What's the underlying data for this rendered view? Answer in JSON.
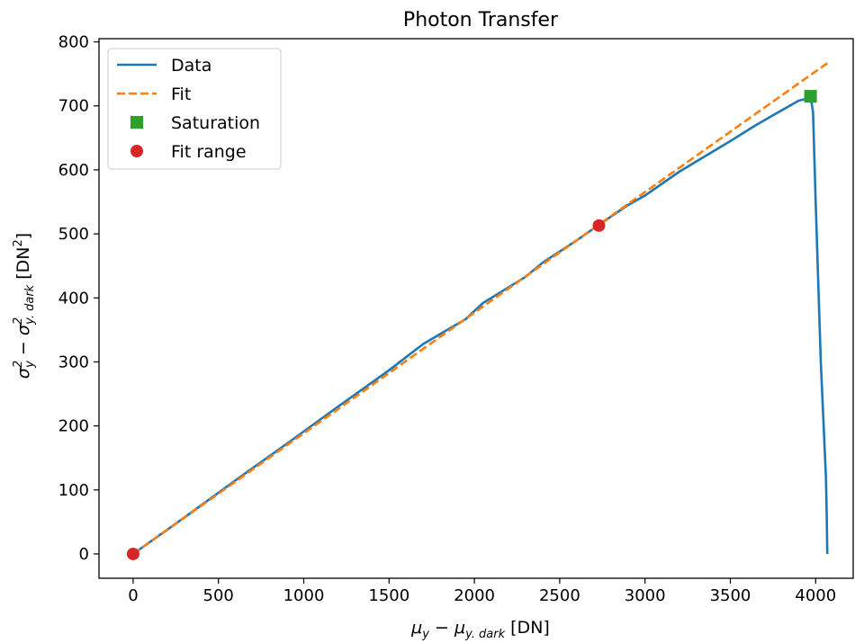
{
  "chart_data": {
    "type": "line",
    "title": "Photon Transfer",
    "xlabel": {
      "main": "μ",
      "sub1": "y",
      "mid": " − μ",
      "sub2": "y. dark",
      "unit": " [DN]"
    },
    "ylabel": {
      "main": "σ",
      "sup1": "2",
      "sub1": "y",
      "mid": " − σ",
      "sup2": "2",
      "sub2": "y. dark",
      "unit": " [DN",
      "unit_sup": "2",
      "unit_end": "]"
    },
    "xlim": [
      -200,
      4220
    ],
    "ylim": [
      -38,
      805
    ],
    "xticks": [
      0,
      500,
      1000,
      1500,
      2000,
      2500,
      3000,
      3500,
      4000
    ],
    "yticks": [
      0,
      100,
      200,
      300,
      400,
      500,
      600,
      700,
      800
    ],
    "grid": false,
    "legend": {
      "placement": "top-left",
      "entries": [
        {
          "label": "Data",
          "style": "solid-line",
          "color": "#1f77b4"
        },
        {
          "label": "Fit",
          "style": "dashed-line",
          "color": "#ff7f0e"
        },
        {
          "label": "Saturation",
          "style": "square-marker",
          "color": "#2ca02c"
        },
        {
          "label": "Fit range",
          "style": "circle-marker",
          "color": "#d62728"
        }
      ]
    },
    "series": [
      {
        "name": "Data",
        "style": "solid",
        "color": "#1f77b4",
        "x": [
          0,
          300,
          600,
          900,
          1200,
          1500,
          1700,
          1950,
          2050,
          2300,
          2400,
          2600,
          2750,
          2900,
          3000,
          3200,
          3500,
          3650,
          3800,
          3900,
          3960,
          3970,
          3985,
          4000,
          4030,
          4060,
          4065,
          4068
        ],
        "y": [
          0,
          57,
          115,
          172,
          230,
          287,
          328,
          367,
          392,
          433,
          455,
          490,
          518,
          545,
          560,
          597,
          645,
          670,
          693,
          708,
          712,
          715,
          690,
          550,
          300,
          120,
          60,
          0
        ]
      },
      {
        "name": "Fit",
        "style": "dashed",
        "color": "#ff7f0e",
        "x": [
          0,
          4080
        ],
        "y": [
          0,
          769
        ]
      },
      {
        "name": "Saturation",
        "style": "square",
        "color": "#2ca02c",
        "x": [
          3970
        ],
        "y": [
          715
        ]
      },
      {
        "name": "Fit range",
        "style": "circle",
        "color": "#d62728",
        "x": [
          0,
          2730
        ],
        "y": [
          0,
          513
        ]
      }
    ]
  }
}
